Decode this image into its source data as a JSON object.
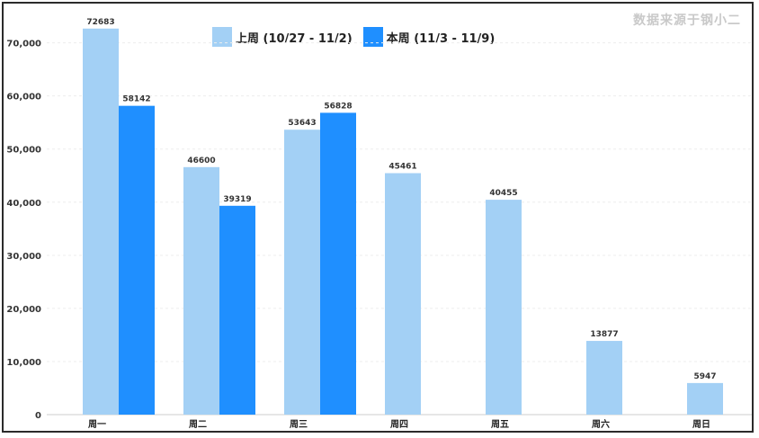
{
  "source_note": "数据来源于钢小二",
  "chart_data": {
    "type": "bar",
    "categories": [
      "周一",
      "周二",
      "周三",
      "周四",
      "周五",
      "周六",
      "周日"
    ],
    "series": [
      {
        "name": "上周 (10/27 - 11/2)",
        "color": "#a3d0f5",
        "values": [
          72683,
          46600,
          53643,
          45461,
          40455,
          13877,
          5947
        ]
      },
      {
        "name": "本周 (11/3 - 11/9)",
        "color": "#1f8fff",
        "values": [
          58142,
          39319,
          56828,
          null,
          null,
          null,
          null
        ]
      }
    ],
    "yticks": [
      0,
      10000,
      20000,
      30000,
      40000,
      50000,
      60000,
      70000
    ],
    "ytick_labels": [
      "0",
      "10,000",
      "20,000",
      "30,000",
      "40,000",
      "50,000",
      "60,000",
      "70,000"
    ],
    "ylim": [
      0,
      74000
    ],
    "grid": true,
    "legend_position": "top-center"
  }
}
